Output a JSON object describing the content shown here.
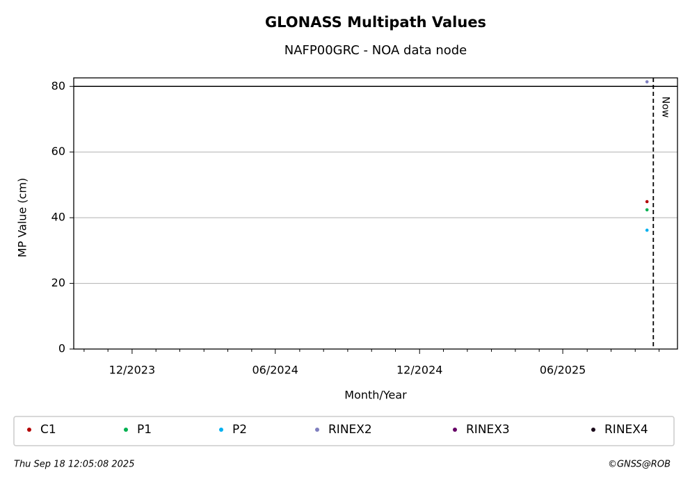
{
  "chart_data": {
    "type": "scatter",
    "title": "GLONASS Multipath Values",
    "subtitle": "NAFP00GRC - NOA data node",
    "x_label": "Month/Year",
    "y_label": "MP Value (cm)",
    "xlim": [
      2023.714,
      2025.814
    ],
    "xticks": [
      {
        "value": 2023.917,
        "label": "12/2023"
      },
      {
        "value": 2024.415,
        "label": "06/2024"
      },
      {
        "value": 2024.917,
        "label": "12/2024"
      },
      {
        "value": 2025.415,
        "label": "06/2025"
      }
    ],
    "xminorticks": [
      2023.75,
      2023.833,
      2024.0,
      2024.083,
      2024.167,
      2024.25,
      2024.333,
      2024.5,
      2024.583,
      2024.667,
      2024.75,
      2024.833,
      2025.0,
      2025.083,
      2025.167,
      2025.25,
      2025.333,
      2025.5,
      2025.583,
      2025.667,
      2025.75
    ],
    "ylim": [
      0,
      82.6
    ],
    "yticks": [
      0,
      20,
      40,
      60,
      80
    ],
    "grid": true,
    "threshold": 80,
    "now": {
      "x": 2025.73,
      "label": "Now"
    },
    "series": [
      {
        "name": "C1",
        "color": "#b30000",
        "x": [
          2025.708
        ],
        "values": [
          44.9
        ]
      },
      {
        "name": "P1",
        "color": "#00b050",
        "x": [
          2025.708
        ],
        "values": [
          42.4
        ]
      },
      {
        "name": "P2",
        "color": "#00b0f0",
        "x": [
          2025.708
        ],
        "values": [
          36.2
        ]
      },
      {
        "name": "RINEX2",
        "color": "#7f7fbf",
        "x": [
          2025.708
        ],
        "values": [
          81.4
        ]
      },
      {
        "name": "RINEX3",
        "color": "#660066",
        "x": [
          null
        ],
        "values": [
          null
        ]
      },
      {
        "name": "RINEX4",
        "color": "#1a0a1a",
        "x": [
          null
        ],
        "values": [
          null
        ]
      }
    ],
    "legend": "bottom",
    "timestamp": "Thu Sep 18 12:05:08 2025",
    "credit": "©GNSS@ROB"
  }
}
